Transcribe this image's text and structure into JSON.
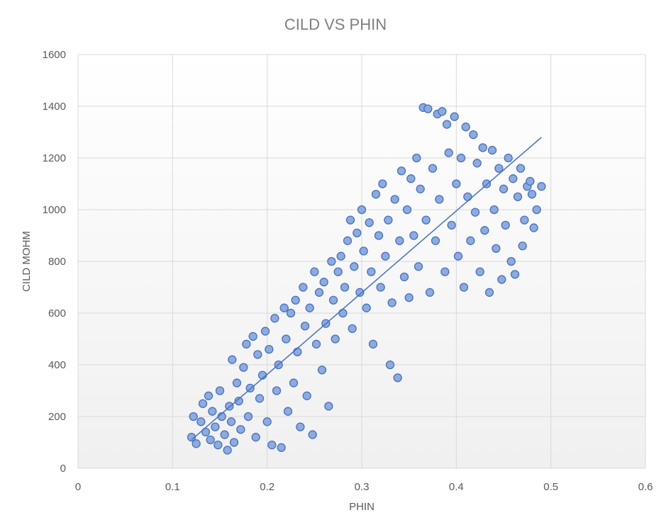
{
  "chart_data": {
    "type": "scatter",
    "title": "CILD VS PHIN",
    "xlabel": "PHIN",
    "ylabel": "CILD MOHM",
    "xlim": [
      0,
      0.6
    ],
    "ylim": [
      0,
      1600
    ],
    "x_ticks": [
      "0",
      "0.1",
      "0.2",
      "0.3",
      "0.4",
      "0.5",
      "0.6"
    ],
    "y_ticks": [
      "0",
      "200",
      "400",
      "600",
      "800",
      "1000",
      "1200",
      "1400",
      "1600"
    ],
    "grid": true,
    "legend": "none",
    "marker_color": "#8faadc",
    "marker_edge": "#4472c4",
    "trendline": {
      "x": [
        0.12,
        0.49
      ],
      "y": [
        110,
        1280
      ],
      "color": "#4472c4"
    },
    "series": [
      {
        "points": [
          [
            0.12,
            120
          ],
          [
            0.122,
            200
          ],
          [
            0.125,
            95
          ],
          [
            0.13,
            180
          ],
          [
            0.132,
            250
          ],
          [
            0.135,
            140
          ],
          [
            0.138,
            280
          ],
          [
            0.14,
            110
          ],
          [
            0.142,
            220
          ],
          [
            0.145,
            160
          ],
          [
            0.148,
            90
          ],
          [
            0.15,
            300
          ],
          [
            0.152,
            200
          ],
          [
            0.155,
            130
          ],
          [
            0.158,
            70
          ],
          [
            0.16,
            240
          ],
          [
            0.162,
            180
          ],
          [
            0.163,
            420
          ],
          [
            0.165,
            100
          ],
          [
            0.168,
            330
          ],
          [
            0.17,
            260
          ],
          [
            0.172,
            150
          ],
          [
            0.175,
            390
          ],
          [
            0.178,
            480
          ],
          [
            0.18,
            200
          ],
          [
            0.182,
            310
          ],
          [
            0.185,
            510
          ],
          [
            0.188,
            120
          ],
          [
            0.19,
            440
          ],
          [
            0.192,
            270
          ],
          [
            0.195,
            360
          ],
          [
            0.198,
            530
          ],
          [
            0.2,
            180
          ],
          [
            0.202,
            460
          ],
          [
            0.205,
            90
          ],
          [
            0.208,
            580
          ],
          [
            0.21,
            300
          ],
          [
            0.212,
            400
          ],
          [
            0.215,
            80
          ],
          [
            0.218,
            620
          ],
          [
            0.22,
            500
          ],
          [
            0.222,
            220
          ],
          [
            0.225,
            600
          ],
          [
            0.228,
            330
          ],
          [
            0.23,
            650
          ],
          [
            0.232,
            450
          ],
          [
            0.235,
            160
          ],
          [
            0.238,
            700
          ],
          [
            0.24,
            550
          ],
          [
            0.242,
            280
          ],
          [
            0.245,
            620
          ],
          [
            0.248,
            130
          ],
          [
            0.25,
            760
          ],
          [
            0.252,
            480
          ],
          [
            0.255,
            680
          ],
          [
            0.258,
            380
          ],
          [
            0.26,
            720
          ],
          [
            0.262,
            560
          ],
          [
            0.265,
            240
          ],
          [
            0.268,
            800
          ],
          [
            0.27,
            650
          ],
          [
            0.272,
            500
          ],
          [
            0.275,
            760
          ],
          [
            0.278,
            820
          ],
          [
            0.28,
            600
          ],
          [
            0.282,
            700
          ],
          [
            0.285,
            880
          ],
          [
            0.288,
            960
          ],
          [
            0.29,
            540
          ],
          [
            0.292,
            780
          ],
          [
            0.295,
            910
          ],
          [
            0.298,
            680
          ],
          [
            0.3,
            1000
          ],
          [
            0.302,
            840
          ],
          [
            0.305,
            620
          ],
          [
            0.308,
            950
          ],
          [
            0.31,
            760
          ],
          [
            0.312,
            480
          ],
          [
            0.315,
            1060
          ],
          [
            0.318,
            900
          ],
          [
            0.32,
            700
          ],
          [
            0.322,
            1100
          ],
          [
            0.325,
            820
          ],
          [
            0.328,
            960
          ],
          [
            0.33,
            400
          ],
          [
            0.332,
            640
          ],
          [
            0.335,
            1040
          ],
          [
            0.338,
            350
          ],
          [
            0.34,
            880
          ],
          [
            0.342,
            1150
          ],
          [
            0.345,
            740
          ],
          [
            0.348,
            1000
          ],
          [
            0.35,
            660
          ],
          [
            0.352,
            1120
          ],
          [
            0.355,
            900
          ],
          [
            0.358,
            1200
          ],
          [
            0.36,
            780
          ],
          [
            0.362,
            1080
          ],
          [
            0.365,
            1395
          ],
          [
            0.368,
            960
          ],
          [
            0.37,
            1390
          ],
          [
            0.372,
            680
          ],
          [
            0.375,
            1160
          ],
          [
            0.378,
            880
          ],
          [
            0.38,
            1370
          ],
          [
            0.382,
            1040
          ],
          [
            0.385,
            1380
          ],
          [
            0.388,
            760
          ],
          [
            0.39,
            1330
          ],
          [
            0.392,
            1220
          ],
          [
            0.395,
            940
          ],
          [
            0.398,
            1360
          ],
          [
            0.4,
            1100
          ],
          [
            0.402,
            820
          ],
          [
            0.405,
            1200
          ],
          [
            0.408,
            700
          ],
          [
            0.41,
            1320
          ],
          [
            0.412,
            1050
          ],
          [
            0.415,
            880
          ],
          [
            0.418,
            1290
          ],
          [
            0.42,
            990
          ],
          [
            0.422,
            1180
          ],
          [
            0.425,
            760
          ],
          [
            0.428,
            1240
          ],
          [
            0.43,
            920
          ],
          [
            0.432,
            1100
          ],
          [
            0.435,
            680
          ],
          [
            0.438,
            1230
          ],
          [
            0.44,
            1000
          ],
          [
            0.442,
            850
          ],
          [
            0.445,
            1160
          ],
          [
            0.448,
            730
          ],
          [
            0.45,
            1080
          ],
          [
            0.452,
            940
          ],
          [
            0.455,
            1200
          ],
          [
            0.458,
            800
          ],
          [
            0.46,
            1120
          ],
          [
            0.462,
            750
          ],
          [
            0.465,
            1050
          ],
          [
            0.468,
            1160
          ],
          [
            0.47,
            860
          ],
          [
            0.472,
            960
          ],
          [
            0.475,
            1090
          ],
          [
            0.478,
            1110
          ],
          [
            0.48,
            1060
          ],
          [
            0.482,
            930
          ],
          [
            0.485,
            1000
          ],
          [
            0.49,
            1090
          ]
        ]
      }
    ]
  }
}
